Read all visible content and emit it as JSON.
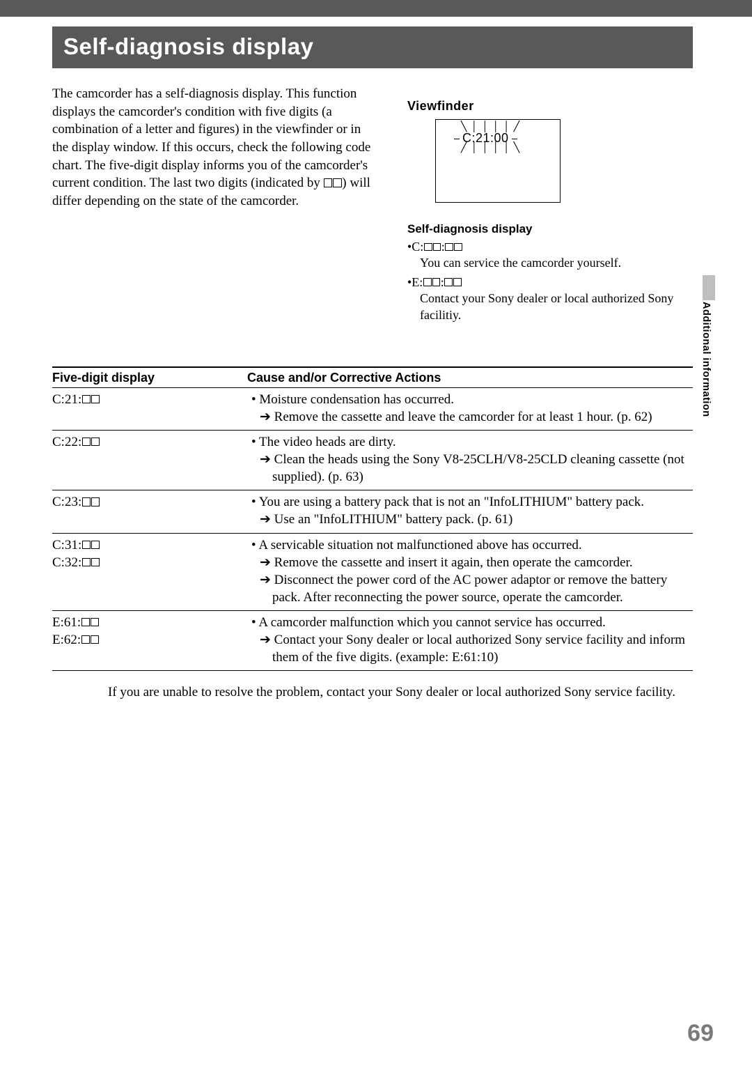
{
  "title": "Self-diagnosis display",
  "intro": "The camcorder has a self-diagnosis display. This function displays the camcorder's condition with five digits (a combination of a letter and figures) in the viewfinder or in the display window. If this occurs, check the following code chart. The five-digit display informs you of the camcorder's current condition. The last two digits (indicated by □□) will differ depending on the state of the camcorder.",
  "viewfinder": {
    "label": "Viewfinder",
    "code": "C:21:00"
  },
  "sd": {
    "heading": "Self-diagnosis display",
    "items": [
      {
        "code": "•C:□□:□□",
        "desc": "You can service the camcorder yourself."
      },
      {
        "code": "•E:□□:□□",
        "desc": "Contact your Sony dealer or local authorized Sony facilitiy."
      }
    ]
  },
  "side_tab": "Additional information",
  "table": {
    "headers": [
      "Five-digit display",
      "Cause and/or Corrective Actions"
    ],
    "rows": [
      {
        "code": "C:21:□□",
        "lines": [
          "• Moisture condensation has occurred.",
          "→ Remove the cassette and leave the camcorder for at least 1 hour. (p. 62)"
        ]
      },
      {
        "code": "C:22:□□",
        "lines": [
          "• The video heads are dirty.",
          "→ Clean the heads using the Sony V8-25CLH/V8-25CLD cleaning cassette (not supplied). (p. 63)"
        ]
      },
      {
        "code": "C:23:□□",
        "lines": [
          "• You are using a battery pack that is not an \"InfoLITHIUM\" battery pack.",
          "→ Use an \"InfoLITHIUM\" battery pack. (p. 61)"
        ]
      },
      {
        "code": "C:31:□□\nC:32:□□",
        "lines": [
          "• A servicable situation not malfunctioned above has occurred.",
          "→ Remove the cassette and insert it again, then operate the camcorder.",
          "→ Disconnect the power cord of the AC power adaptor or remove the battery pack. After reconnecting the power source, operate the camcorder."
        ]
      },
      {
        "code": "E:61:□□\nE:62:□□",
        "lines": [
          "• A camcorder malfunction which you cannot service has occurred.",
          "→ Contact your Sony dealer or local authorized Sony service facility and inform them of the five digits. (example: E:61:10)"
        ]
      }
    ]
  },
  "footer": "If you are unable to resolve the problem, contact your Sony dealer or local authorized Sony service facility.",
  "page_number": "69"
}
